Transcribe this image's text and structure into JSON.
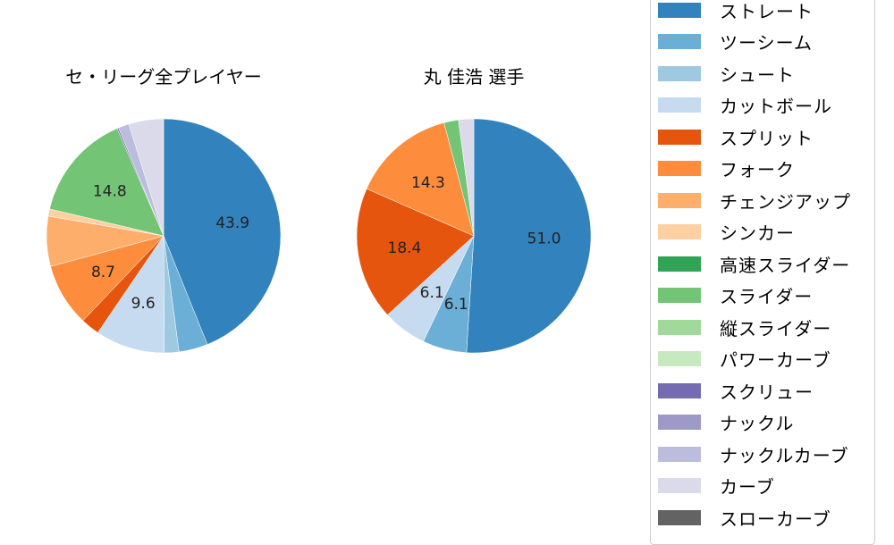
{
  "colors": {
    "ストレート": "#3182bd",
    "ツーシーム": "#6baed6",
    "シュート": "#9ecae1",
    "カットボール": "#c6dbef",
    "スプリット": "#e6550d",
    "フォーク": "#fd8d3c",
    "チェンジアップ": "#fdae6b",
    "シンカー": "#fdd0a2",
    "高速スライダー": "#31a354",
    "スライダー": "#74c476",
    "縦スライダー": "#a1d99b",
    "パワーカーブ": "#c7e9c0",
    "スクリュー": "#756bb1",
    "ナックル": "#9e9ac8",
    "ナックルカーブ": "#bcbddc",
    "カーブ": "#dadaeb",
    "スローカーブ": "#636363"
  },
  "legend": {
    "items": [
      {
        "label": "ストレート",
        "color": "#3182bd"
      },
      {
        "label": "ツーシーム",
        "color": "#6baed6"
      },
      {
        "label": "シュート",
        "color": "#9ecae1"
      },
      {
        "label": "カットボール",
        "color": "#c6dbef"
      },
      {
        "label": "スプリット",
        "color": "#e6550d"
      },
      {
        "label": "フォーク",
        "color": "#fd8d3c"
      },
      {
        "label": "チェンジアップ",
        "color": "#fdae6b"
      },
      {
        "label": "シンカー",
        "color": "#fdd0a2"
      },
      {
        "label": "高速スライダー",
        "color": "#31a354"
      },
      {
        "label": "スライダー",
        "color": "#74c476"
      },
      {
        "label": "縦スライダー",
        "color": "#a1d99b"
      },
      {
        "label": "パワーカーブ",
        "color": "#c7e9c0"
      },
      {
        "label": "スクリュー",
        "color": "#756bb1"
      },
      {
        "label": "ナックル",
        "color": "#9e9ac8"
      },
      {
        "label": "ナックルカーブ",
        "color": "#bcbddc"
      },
      {
        "label": "カーブ",
        "color": "#dadaeb"
      },
      {
        "label": "スローカーブ",
        "color": "#636363"
      }
    ]
  },
  "chart_data": [
    {
      "type": "pie",
      "title": "セ・リーグ全プレイヤー",
      "start_angle_deg": 90,
      "direction": "clockwise",
      "labels_shown_threshold": "values >= ~5",
      "slices": [
        {
          "name": "ストレート",
          "value": 43.9,
          "label": "43.9"
        },
        {
          "name": "ツーシーム",
          "value": 4.0,
          "label": ""
        },
        {
          "name": "シュート",
          "value": 2.0,
          "label": ""
        },
        {
          "name": "カットボール",
          "value": 9.6,
          "label": "9.6"
        },
        {
          "name": "スプリット",
          "value": 2.6,
          "label": ""
        },
        {
          "name": "フォーク",
          "value": 8.7,
          "label": "8.7"
        },
        {
          "name": "チェンジアップ",
          "value": 6.9,
          "label": ""
        },
        {
          "name": "シンカー",
          "value": 1.0,
          "label": ""
        },
        {
          "name": "スライダー",
          "value": 14.8,
          "label": "14.8"
        },
        {
          "name": "スクリュー",
          "value": 0.2,
          "label": ""
        },
        {
          "name": "ナックルカーブ",
          "value": 1.5,
          "label": ""
        },
        {
          "name": "カーブ",
          "value": 4.8,
          "label": ""
        }
      ]
    },
    {
      "type": "pie",
      "title": "丸 佳浩  選手",
      "start_angle_deg": 90,
      "direction": "clockwise",
      "slices": [
        {
          "name": "ストレート",
          "value": 51.0,
          "label": "51.0"
        },
        {
          "name": "ツーシーム",
          "value": 6.1,
          "label": "6.1"
        },
        {
          "name": "カットボール",
          "value": 6.1,
          "label": "6.1"
        },
        {
          "name": "スプリット",
          "value": 18.4,
          "label": "18.4"
        },
        {
          "name": "フォーク",
          "value": 14.3,
          "label": "14.3"
        },
        {
          "name": "スライダー",
          "value": 2.0,
          "label": ""
        },
        {
          "name": "カーブ",
          "value": 2.1,
          "label": ""
        }
      ]
    }
  ]
}
